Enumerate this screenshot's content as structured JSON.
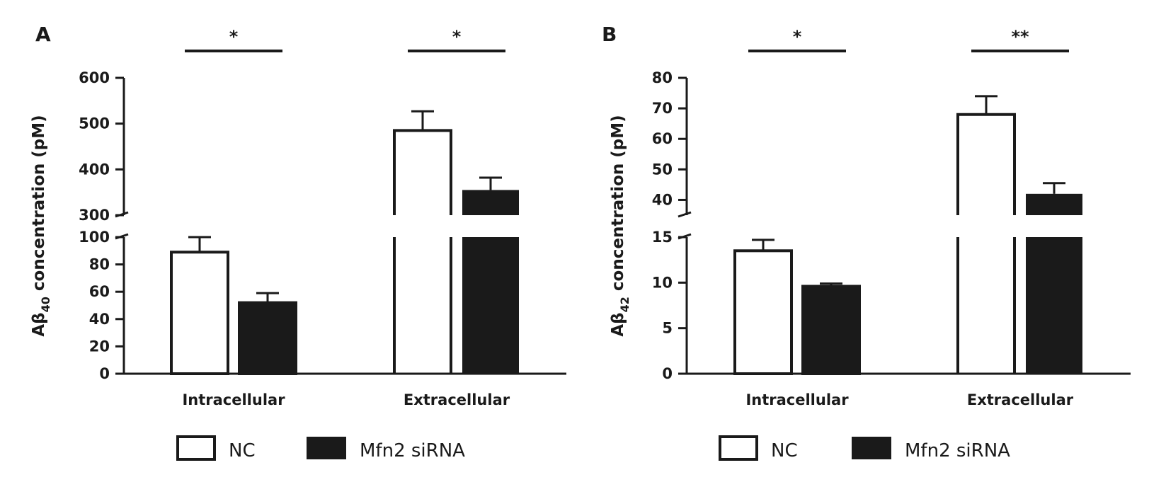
{
  "chart_data": [
    {
      "panel_label": "A",
      "type": "bar",
      "categories": [
        "Intracellular",
        "Extracellular"
      ],
      "ylabel_main": "Aβ",
      "ylabel_sub": "40",
      "ylabel_rest": " concentration (pM)",
      "axis_break": true,
      "lower_ylim": [
        0,
        100
      ],
      "lower_ticks": [
        "0",
        "20",
        "40",
        "60",
        "80",
        "100"
      ],
      "upper_ylim": [
        300,
        600
      ],
      "upper_ticks": [
        "300",
        "400",
        "500",
        "600"
      ],
      "series": [
        {
          "name": "NC",
          "fill": "#ffffff",
          "values": [
            89,
            485
          ],
          "errors": [
            11,
            42
          ]
        },
        {
          "name": "Mfn2 siRNA",
          "fill": "#1a1a1a",
          "values": [
            52,
            355
          ],
          "errors": [
            7,
            27
          ]
        }
      ],
      "significance": [
        "*",
        "*"
      ]
    },
    {
      "panel_label": "B",
      "type": "bar",
      "categories": [
        "Intracellular",
        "Extracellular"
      ],
      "ylabel_main": "Aβ",
      "ylabel_sub": "42",
      "ylabel_rest": " concentration (pM)",
      "axis_break": true,
      "lower_ylim": [
        0,
        15
      ],
      "lower_ticks": [
        "0",
        "5",
        "10",
        "15"
      ],
      "upper_ylim": [
        35,
        80
      ],
      "upper_ticks": [
        "40",
        "50",
        "60",
        "70",
        "80"
      ],
      "series": [
        {
          "name": "NC",
          "fill": "#ffffff",
          "values": [
            13.5,
            68
          ],
          "errors": [
            1.2,
            6
          ]
        },
        {
          "name": "Mfn2 siRNA",
          "fill": "#1a1a1a",
          "values": [
            9.6,
            42
          ],
          "errors": [
            0.3,
            3.5
          ]
        }
      ],
      "significance": [
        "*",
        "**"
      ]
    }
  ],
  "legend": {
    "nc_label": "NC",
    "sirna_label": "Mfn2 siRNA"
  }
}
